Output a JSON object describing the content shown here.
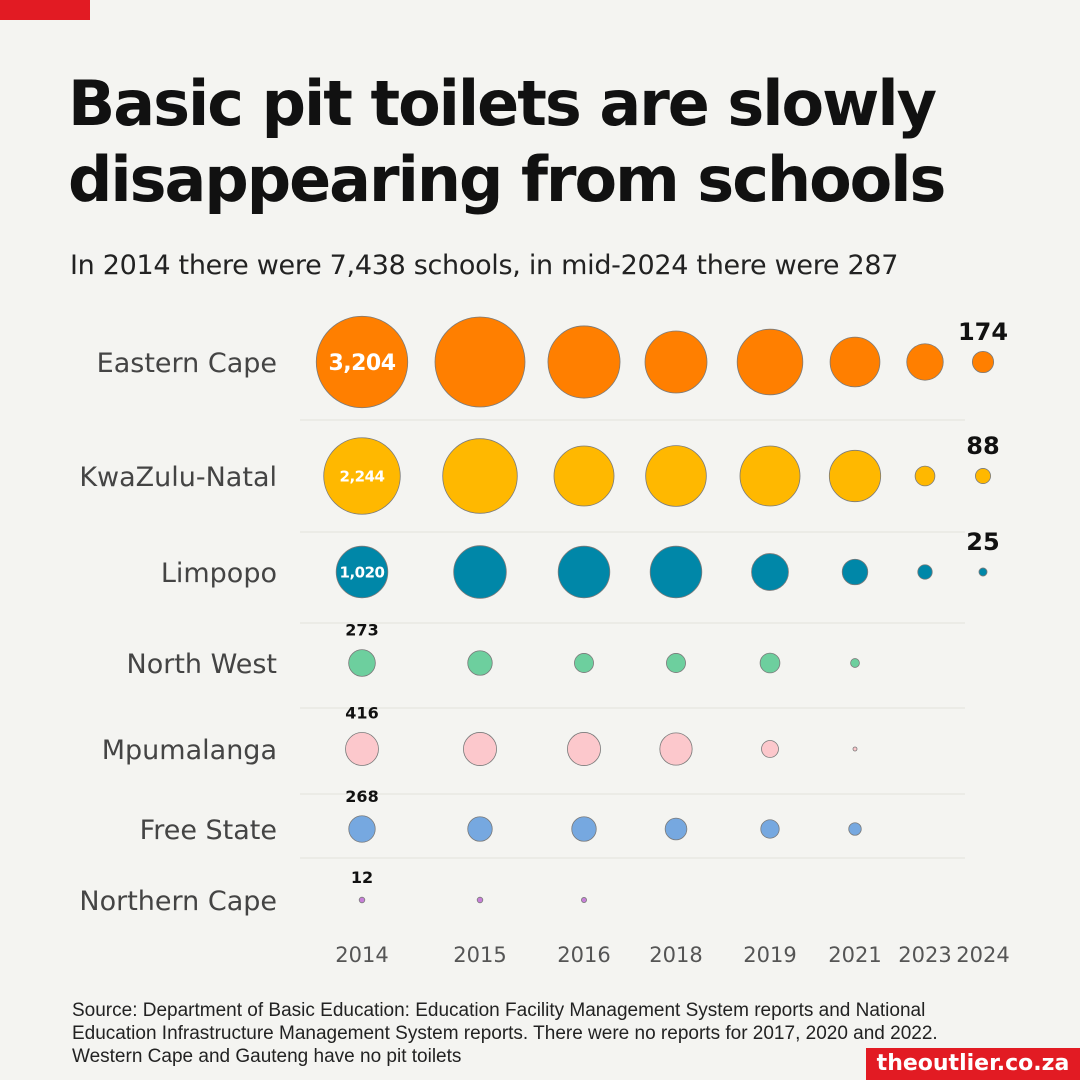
{
  "header": {
    "title": "Basic pit toilets are slowly disappearing from schools",
    "subtitle": "In 2014 there were 7,438 schools, in mid-2024 there were 287"
  },
  "footer": {
    "source": "Source: Department of Basic Education: Education Facility Management System reports and National Education Infrastructure Management System reports. There were no reports for 2017, 2020 and 2022. Western Cape and Gauteng have no pit toilets",
    "brand": "theoutlier.co.za"
  },
  "colors": {
    "accent": "#e21b23",
    "eastern_cape": "#ff7f00",
    "kwazulu_natal": "#ffb800",
    "limpopo": "#0087a8",
    "north_west": "#6dcf9e",
    "mpumalanga": "#fcc8cc",
    "free_state": "#76a8e0",
    "northern_cape": "#c77fd8"
  },
  "chart_data": {
    "type": "bubble",
    "categories": [
      "2014",
      "2015",
      "2016",
      "2018",
      "2019",
      "2021",
      "2023",
      "2024"
    ],
    "series": [
      {
        "name": "Eastern Cape",
        "color": "#ff7f00",
        "values": [
          3204,
          3100,
          1990,
          1470,
          1650,
          950,
          510,
          174
        ],
        "labels": [
          {
            "index": 0,
            "text": "3,204",
            "inside": true
          },
          {
            "index": 7,
            "text": "174",
            "inside": false
          }
        ]
      },
      {
        "name": "KwaZulu-Natal",
        "color": "#ffb800",
        "values": [
          2244,
          2130,
          1380,
          1410,
          1380,
          1010,
          150,
          88
        ],
        "labels": [
          {
            "index": 0,
            "text": "2,244",
            "inside": true
          },
          {
            "index": 7,
            "text": "88",
            "inside": false
          }
        ]
      },
      {
        "name": "Limpopo",
        "color": "#0087a8",
        "values": [
          1020,
          1060,
          1020,
          1020,
          520,
          250,
          80,
          25
        ],
        "labels": [
          {
            "index": 0,
            "text": "1,020",
            "inside": true
          },
          {
            "index": 7,
            "text": "25",
            "inside": false
          }
        ]
      },
      {
        "name": "North West",
        "color": "#6dcf9e",
        "values": [
          273,
          230,
          140,
          140,
          150,
          30,
          null,
          null
        ],
        "labels": [
          {
            "index": 0,
            "text": "273",
            "inside": false
          }
        ]
      },
      {
        "name": "Mpumalanga",
        "color": "#fcc8cc",
        "values": [
          416,
          420,
          420,
          400,
          110,
          5,
          null,
          null
        ],
        "labels": [
          {
            "index": 0,
            "text": "416",
            "inside": false
          }
        ]
      },
      {
        "name": "Free State",
        "color": "#76a8e0",
        "values": [
          268,
          230,
          230,
          180,
          130,
          60,
          null,
          null
        ],
        "labels": [
          {
            "index": 0,
            "text": "268",
            "inside": false
          }
        ]
      },
      {
        "name": "Northern Cape",
        "color": "#c77fd8",
        "values": [
          12,
          12,
          10,
          null,
          null,
          null,
          null,
          null
        ],
        "labels": [
          {
            "index": 0,
            "text": "12",
            "inside": false
          }
        ]
      }
    ]
  }
}
